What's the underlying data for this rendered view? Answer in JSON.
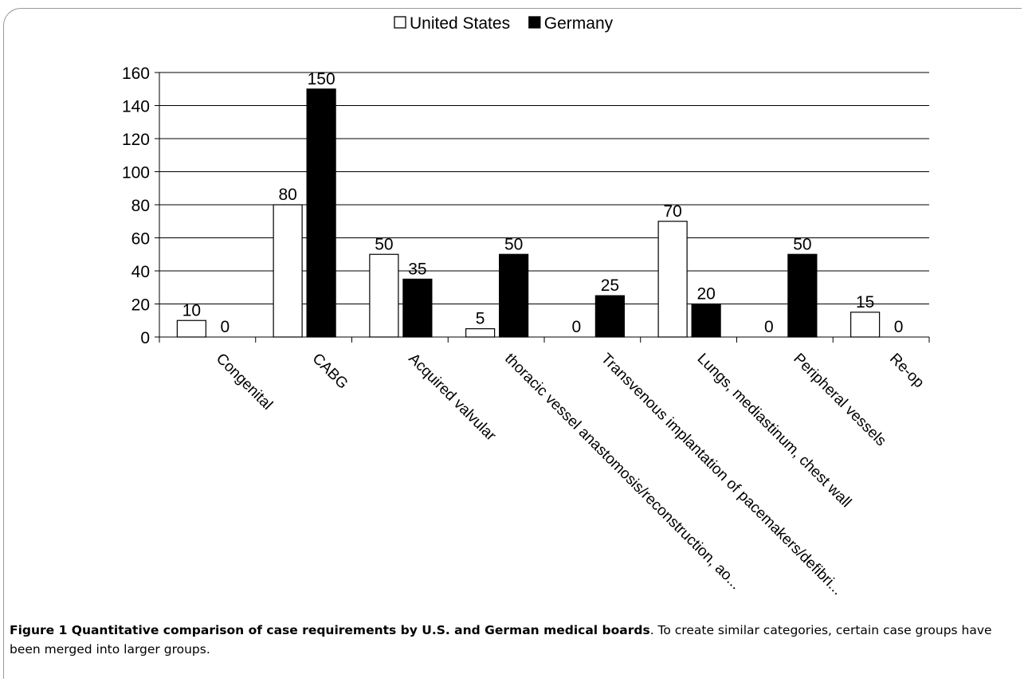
{
  "chart_data": {
    "type": "bar",
    "categories": [
      "Congenital",
      "CABG",
      "Acquired valvular",
      "thoracic vessel anastomosis/reconstruction, ao...",
      "Transvenous implantation of pacemakers/defibri...",
      "Lungs, mediastinum, chest wall",
      "Peripheral vessels",
      "Re-op"
    ],
    "series": [
      {
        "name": "United States",
        "values": [
          10,
          80,
          50,
          5,
          0,
          70,
          0,
          15
        ],
        "color": "#ffffff"
      },
      {
        "name": "Germany",
        "values": [
          0,
          150,
          35,
          50,
          25,
          20,
          50,
          0
        ],
        "color": "#000000"
      }
    ],
    "ylim": [
      0,
      160
    ],
    "yticks": [
      "0",
      "20",
      "40",
      "60",
      "80",
      "100",
      "120",
      "140",
      "160"
    ],
    "grid": true,
    "legend_position": "top-center",
    "title": "",
    "xlabel": "",
    "ylabel": ""
  },
  "caption": {
    "label": "Figure 1 Quantitative comparison of case requirements by U.S. and German medical boards",
    "text": ". To create similar categories, certain case groups have been merged into larger groups."
  }
}
